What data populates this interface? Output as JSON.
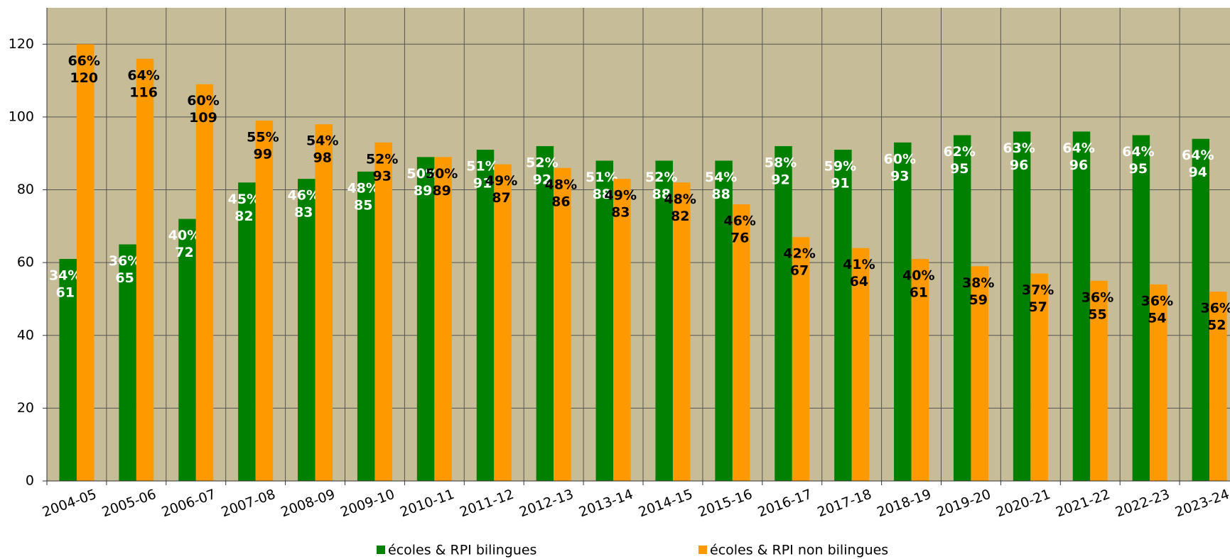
{
  "chart_data": {
    "type": "bar",
    "categories": [
      "2004-05",
      "2005-06",
      "2006-07",
      "2007-08",
      "2008-09",
      "2009-10",
      "2010-11",
      "2011-12",
      "2012-13",
      "2013-14",
      "2014-15",
      "2015-16",
      "2016-17",
      "2017-18",
      "2018-19",
      "2019-20",
      "2020-21",
      "2021-22",
      "2022-23",
      "2023-24"
    ],
    "series": [
      {
        "name": "écoles & RPI bilingues",
        "color": "#008000",
        "label_color": "#ffffff",
        "values": [
          61,
          65,
          72,
          82,
          83,
          85,
          89,
          91,
          92,
          88,
          88,
          88,
          92,
          91,
          93,
          95,
          96,
          96,
          95,
          94
        ],
        "share_labels": [
          "34%",
          "36%",
          "40%",
          "45%",
          "46%",
          "48%",
          "50%",
          "51%",
          "52%",
          "51%",
          "52%",
          "54%",
          "58%",
          "59%",
          "60%",
          "62%",
          "63%",
          "64%",
          "64%",
          "64%"
        ]
      },
      {
        "name": "écoles & RPI non bilingues",
        "color": "#ff9900",
        "label_color": "#000000",
        "values": [
          120,
          116,
          109,
          99,
          98,
          93,
          89,
          87,
          86,
          83,
          82,
          76,
          67,
          64,
          61,
          59,
          57,
          55,
          54,
          52
        ],
        "share_labels": [
          "66%",
          "64%",
          "60%",
          "55%",
          "54%",
          "52%",
          "50%",
          "49%",
          "48%",
          "49%",
          "48%",
          "46%",
          "42%",
          "41%",
          "40%",
          "38%",
          "37%",
          "36%",
          "36%",
          "36%"
        ]
      }
    ],
    "ylim": [
      0,
      130
    ],
    "yticks": [
      0,
      20,
      40,
      60,
      80,
      100,
      120
    ],
    "grid": true,
    "legend": "bottom",
    "plot_background": "#c6bc97"
  }
}
